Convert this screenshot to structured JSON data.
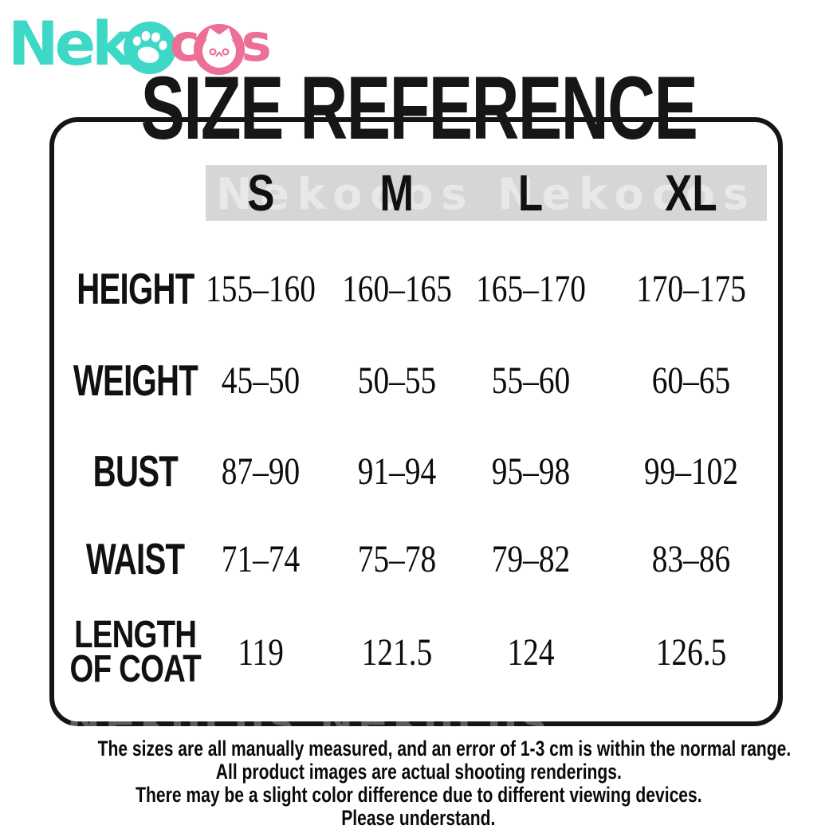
{
  "title": "SIZE REFERENCE",
  "logo": {
    "brand": "Nekocos",
    "part1": "Nek",
    "part2": "c",
    "part3": "s",
    "teal": "#3ed8c6",
    "pink": "#ec6f96"
  },
  "watermark": {
    "text": "Nekocos Nekocos"
  },
  "table": {
    "header_bg": "#d6d6d6",
    "border_color": "#151515",
    "columns": [
      "S",
      "M",
      "L",
      "XL"
    ],
    "rows": [
      {
        "label": "HEIGHT",
        "values": [
          "155–160",
          "160–165",
          "165–170",
          "170–175"
        ]
      },
      {
        "label": "WEIGHT",
        "values": [
          "45–50",
          "50–55",
          "55–60",
          "60–65"
        ]
      },
      {
        "label": "BUST",
        "values": [
          "87–90",
          "91–94",
          "95–98",
          "99–102"
        ]
      },
      {
        "label": "WAIST",
        "values": [
          "71–74",
          "75–78",
          "79–82",
          "83–86"
        ]
      },
      {
        "label": "LENGTH OF COAT",
        "label_lines": [
          "LENGTH",
          "OF COAT"
        ],
        "values": [
          "119",
          "121.5",
          "124",
          "126.5"
        ]
      }
    ]
  },
  "footer": {
    "lines": [
      "The sizes are all manually measured, and an error of 1-3 cm is within the normal range.",
      "All product images are actual shooting renderings.",
      "There may be a slight color difference due to different viewing devices.",
      "Please understand."
    ]
  },
  "chart_data": {
    "type": "table",
    "title": "SIZE REFERENCE",
    "columns": [
      "S",
      "M",
      "L",
      "XL"
    ],
    "rows": [
      {
        "label": "HEIGHT",
        "values": [
          "155-160",
          "160-165",
          "165-170",
          "170-175"
        ]
      },
      {
        "label": "WEIGHT",
        "values": [
          "45-50",
          "50-55",
          "55-60",
          "60-65"
        ]
      },
      {
        "label": "BUST",
        "values": [
          "87-90",
          "91-94",
          "95-98",
          "99-102"
        ]
      },
      {
        "label": "WAIST",
        "values": [
          "71-74",
          "75-78",
          "79-82",
          "83-86"
        ]
      },
      {
        "label": "LENGTH OF COAT",
        "values": [
          119,
          121.5,
          124,
          126.5
        ]
      }
    ],
    "notes": "measurements in cm; error of 1-3 cm is normal"
  }
}
